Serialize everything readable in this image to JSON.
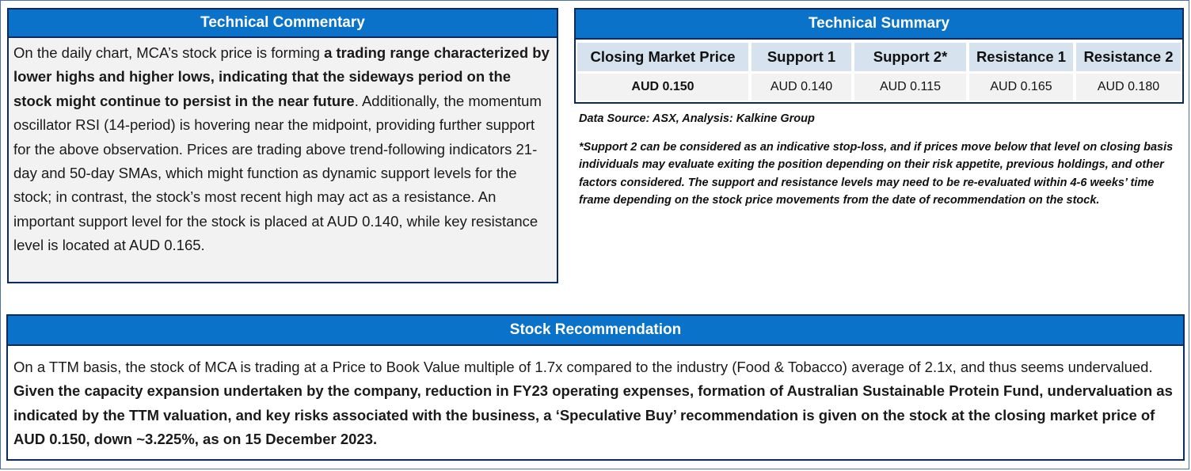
{
  "commentary": {
    "title": "Technical Commentary",
    "p1": "On the daily chart, MCA’s stock price is forming ",
    "p1_bold": "a trading range characterized by lower highs and higher lows, indicating that the sideways period on the stock might continue to persist in the near future",
    "p2": ". Additionally, the momentum oscillator RSI (14-period) is hovering near the midpoint, providing further support for the above observation. Prices are trading above trend-following indicators 21-day and 50-day SMAs, which might function as dynamic support levels for the stock; in contrast, the stock’s most recent high may act as a resistance. An important support level for the stock is placed at AUD 0.140, while key resistance level is located at AUD 0.165."
  },
  "summary": {
    "title": "Technical Summary",
    "headers": [
      "Closing Market Price",
      "Support 1",
      "Support 2*",
      "Resistance 1",
      "Resistance 2"
    ],
    "values": [
      "AUD 0.150",
      "AUD 0.140",
      "AUD 0.115",
      "AUD 0.165",
      "AUD 0.180"
    ],
    "source": "Data Source: ASX, Analysis: Kalkine Group",
    "disclaimer": "*Support 2 can be considered as an indicative stop-loss, and if prices move below that level on closing basis individuals may evaluate exiting the position depending on their risk appetite, previous holdings, and other factors considered. The support and resistance levels may need to be re-evaluated within 4-6 weeks’ time frame depending on the stock price movements from the date of recommendation on the stock."
  },
  "recommendation": {
    "title": "Stock Recommendation",
    "p1": "On a TTM basis, the stock of MCA is trading at a Price to Book Value multiple of 1.7x compared to the industry (Food & Tobacco) average of 2.1x, and thus seems undervalued. ",
    "p1_bold": "Given the capacity expansion undertaken by the company, reduction in FY23 operating expenses, formation of Australian Sustainable Protein Fund, undervaluation as indicated by the TTM valuation, and key risks associated with the business, a ‘Speculative Buy’ recommendation is given on the stock at the closing market price of AUD 0.150, down ~3.225%, as on 15 December 2023."
  }
}
